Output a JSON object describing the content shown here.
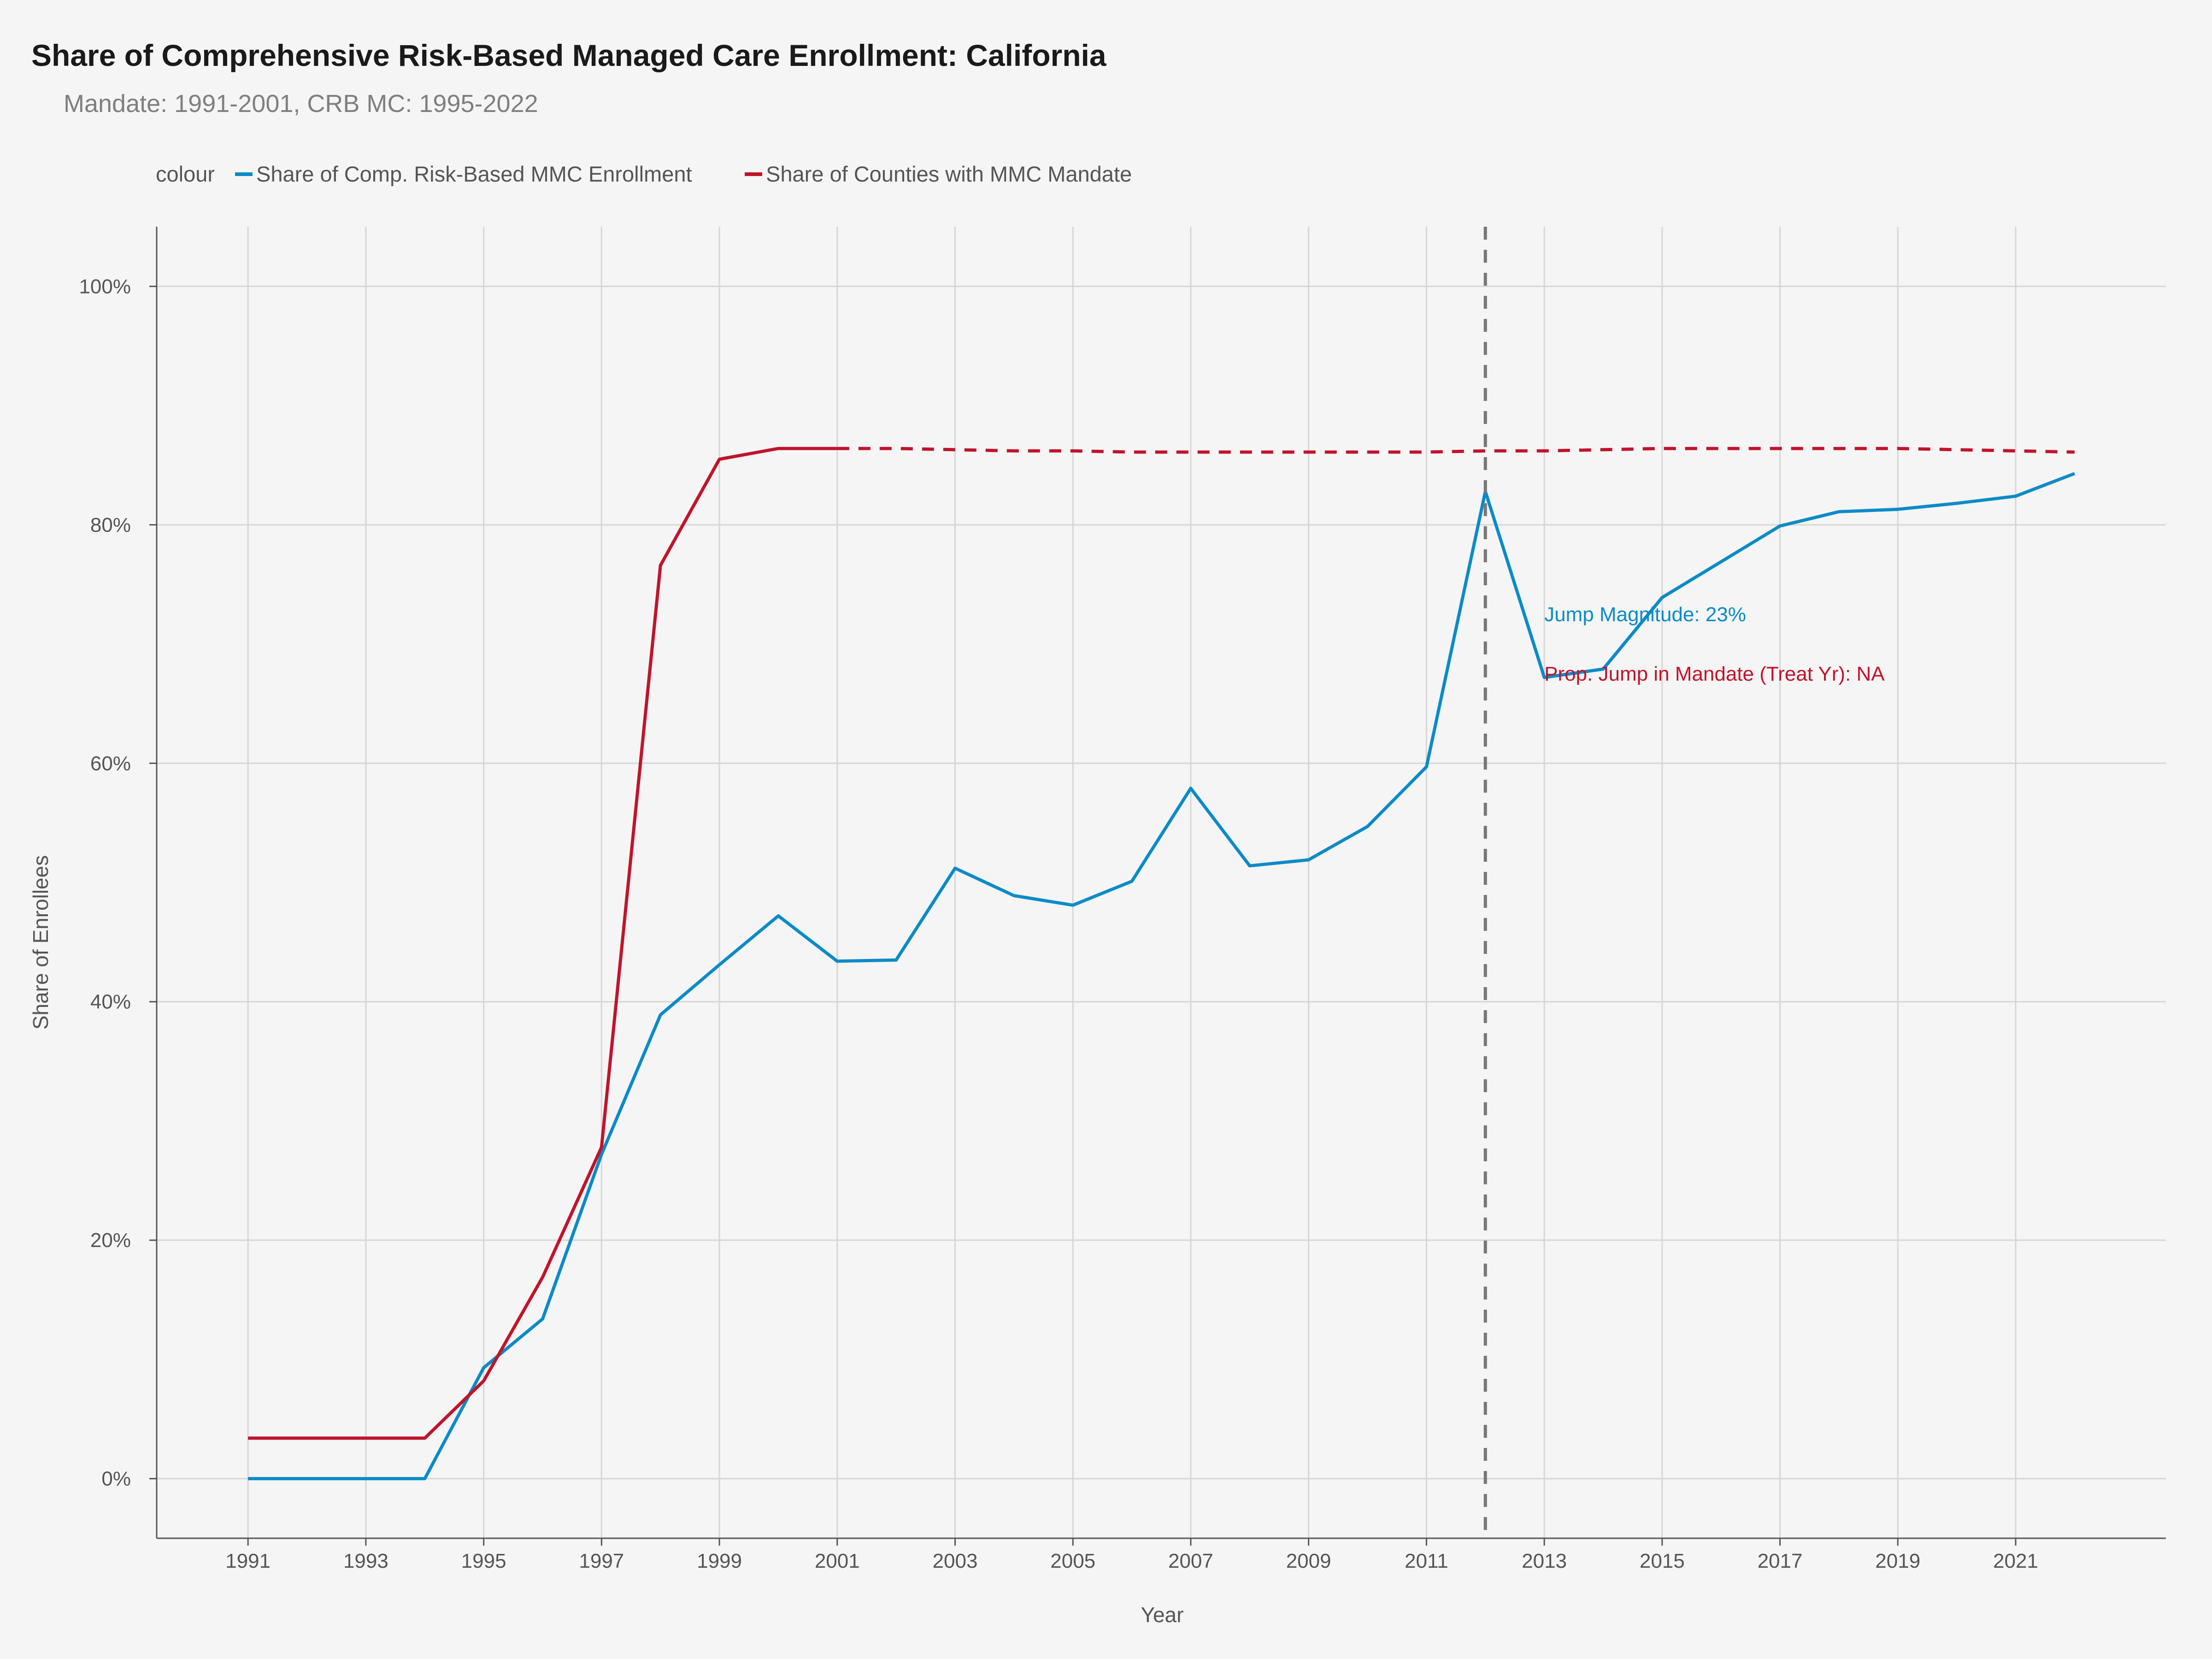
{
  "chart_data": {
    "type": "line",
    "title": "Share of Comprehensive Risk-Based Managed Care Enrollment: California",
    "subtitle": "Mandate: 1991-2001, CRB MC: 1995-2022",
    "legend": {
      "title": "colour",
      "placement": "top-left",
      "items": [
        "Share of Comp. Risk-Based MMC Enrollment",
        "Share of Counties with MMC Mandate"
      ]
    },
    "xlabel": "Year",
    "ylabel": "Share of Enrollees",
    "xlim": [
      1989.45,
      2023.55
    ],
    "ylim": [
      -0.05,
      1.05
    ],
    "x_ticks": [
      1991,
      1993,
      1995,
      1997,
      1999,
      2001,
      2003,
      2005,
      2007,
      2009,
      2011,
      2013,
      2015,
      2017,
      2019,
      2021
    ],
    "y_ticks": [
      0,
      0.2,
      0.4,
      0.6,
      0.8,
      1.0
    ],
    "y_tick_labels": [
      "0%",
      "20%",
      "40%",
      "60%",
      "80%",
      "100%"
    ],
    "grid": true,
    "series": [
      {
        "name": "Share of Comp. Risk-Based MMC Enrollment",
        "color": "#0b8bc7",
        "style": "solid",
        "x": [
          1991,
          1992,
          1993,
          1994,
          1995,
          1996,
          1997,
          1998,
          1999,
          2000,
          2001,
          2002,
          2003,
          2004,
          2005,
          2006,
          2007,
          2008,
          2009,
          2010,
          2011,
          2012,
          2013,
          2014,
          2015,
          2016,
          2017,
          2018,
          2019,
          2020,
          2021,
          2022
        ],
        "values": [
          0.0,
          0.0,
          0.0,
          0.0,
          0.093,
          0.134,
          0.272,
          0.389,
          0.431,
          0.472,
          0.434,
          0.435,
          0.512,
          0.489,
          0.481,
          0.501,
          0.579,
          0.514,
          0.519,
          0.547,
          0.597,
          0.828,
          0.672,
          0.679,
          0.739,
          0.769,
          0.799,
          0.811,
          0.813,
          0.818,
          0.824,
          0.843
        ]
      },
      {
        "name": "Share of Counties with MMC Mandate",
        "color": "#c0142b",
        "style": "solid",
        "x": [
          1991,
          1992,
          1993,
          1994,
          1995,
          1996,
          1997,
          1998,
          1999,
          2000,
          2001
        ],
        "values": [
          0.034,
          0.034,
          0.034,
          0.034,
          0.082,
          0.169,
          0.278,
          0.766,
          0.855,
          0.864,
          0.864
        ]
      },
      {
        "color": "#c0142b",
        "style": "dashed",
        "x": [
          2001,
          2002,
          2003,
          2004,
          2005,
          2006,
          2007,
          2008,
          2009,
          2010,
          2011,
          2012,
          2013,
          2014,
          2015,
          2016,
          2017,
          2018,
          2019,
          2020,
          2021,
          2022
        ],
        "values": [
          0.864,
          0.864,
          0.863,
          0.862,
          0.862,
          0.861,
          0.861,
          0.861,
          0.861,
          0.861,
          0.861,
          0.862,
          0.862,
          0.863,
          0.864,
          0.864,
          0.864,
          0.864,
          0.864,
          0.863,
          0.862,
          0.861
        ]
      }
    ],
    "vline": {
      "x": 2012,
      "style": "dashed",
      "color": "#777777"
    },
    "annotations": [
      {
        "text": "Jump Magnitude: 23%",
        "x": 2013,
        "y": 0.725,
        "color": "#0b8bc7"
      },
      {
        "text": "Prop. Jump in Mandate (Treat Yr): NA",
        "x": 2013,
        "y": 0.675,
        "color": "#c0142b"
      }
    ]
  }
}
